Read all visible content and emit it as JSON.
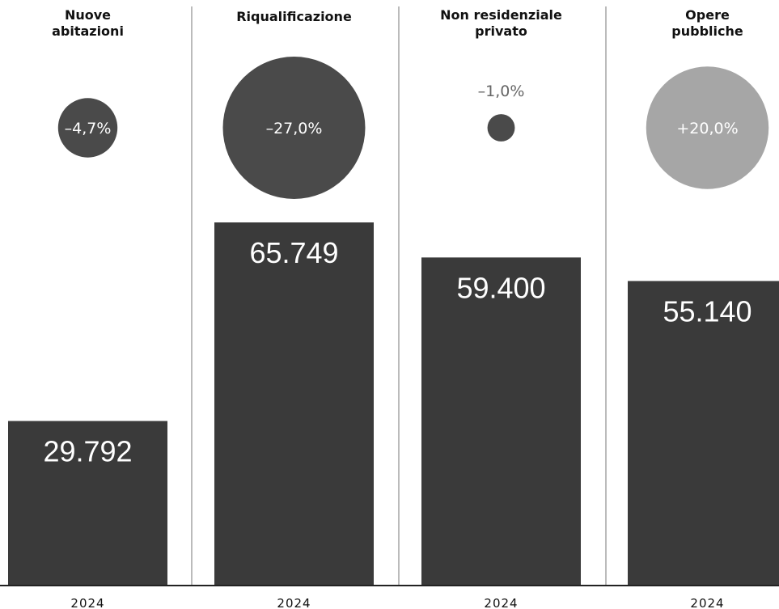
{
  "chart_data": {
    "type": "bar",
    "categories": [
      "Nuove abitazioni",
      "Riqualificazione",
      "Non residenziale privato",
      "Opere pubbliche"
    ],
    "title_lines": [
      [
        "Nuove",
        "abitazioni"
      ],
      [
        "Riqualificazione"
      ],
      [
        "Non residenziale",
        "privato"
      ],
      [
        "Opere",
        "pubbliche"
      ]
    ],
    "values": [
      29792,
      65749,
      59400,
      55140
    ],
    "value_labels": [
      "29.792",
      "65.749",
      "59.400",
      "55.140"
    ],
    "changes": [
      -4.7,
      -27.0,
      -1.0,
      20.0
    ],
    "change_labels": [
      "–4,7%",
      "–27,0%",
      "–1,0%",
      "+20,0%"
    ],
    "x_labels": [
      "2024",
      "2024",
      "2024",
      "2024"
    ],
    "colors": {
      "bar": "#3a3a3a",
      "negative_circle": "#4a4a4a",
      "positive_circle": "#a6a6a6",
      "divider": "#777777",
      "baseline": "#222222"
    }
  }
}
